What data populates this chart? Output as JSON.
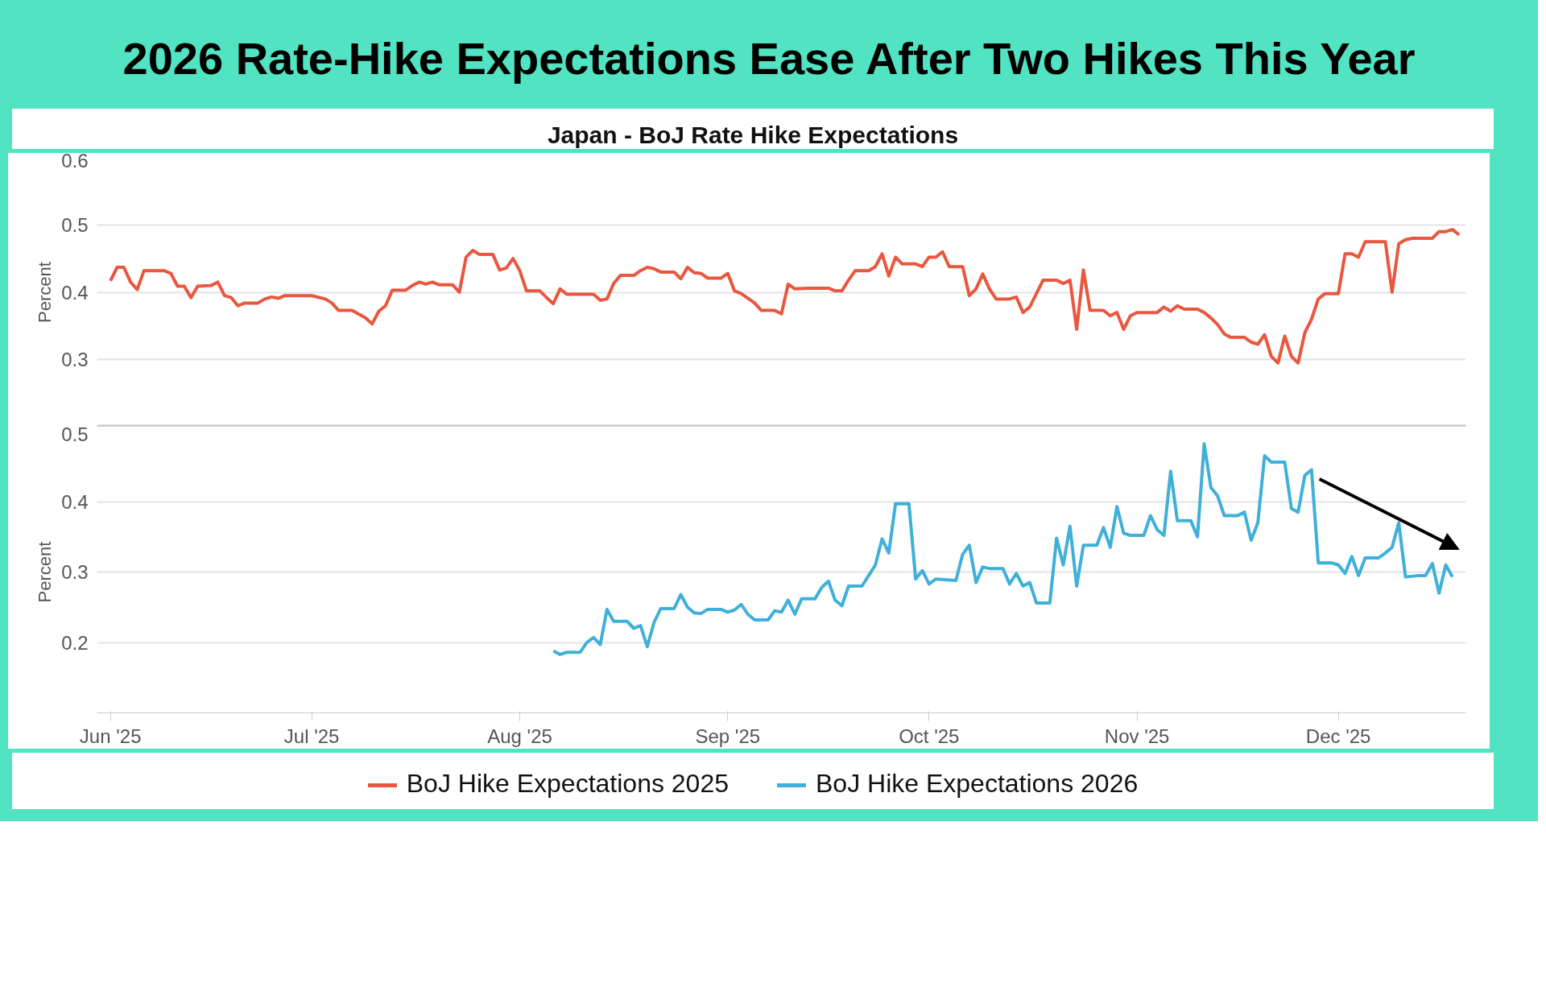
{
  "chart_data": [
    {
      "type": "line",
      "title": "2026 Rate-Hike Expectations Ease After Two Hikes This Year",
      "subtitle": "Japan - BoJ Rate Hike Expectations",
      "ylabel": "Percent",
      "xlim": [
        "2025-05-30",
        "2025-12-20"
      ],
      "ylim": [
        0.2,
        0.6
      ],
      "yticks": [
        0.3,
        0.4,
        0.5,
        0.6
      ],
      "tick_labels": "y",
      "grid": "y",
      "legend": "bottom",
      "series": [
        {
          "name": "BoJ Hike Expectations 2025",
          "color": "#e9573f",
          "x": [
            "2025-06-01",
            "2025-06-02",
            "2025-06-03",
            "2025-06-04",
            "2025-06-05",
            "2025-06-06",
            "2025-06-09",
            "2025-06-10",
            "2025-06-11",
            "2025-06-12",
            "2025-06-13",
            "2025-06-14",
            "2025-06-16",
            "2025-06-17",
            "2025-06-18",
            "2025-06-19",
            "2025-06-20",
            "2025-06-21",
            "2025-06-23",
            "2025-06-24",
            "2025-06-25",
            "2025-06-26",
            "2025-06-27",
            "2025-07-01",
            "2025-07-03",
            "2025-07-04",
            "2025-07-05",
            "2025-07-07",
            "2025-07-09",
            "2025-07-10",
            "2025-07-11",
            "2025-07-12",
            "2025-07-13",
            "2025-07-15",
            "2025-07-16",
            "2025-07-17",
            "2025-07-18",
            "2025-07-19",
            "2025-07-20",
            "2025-07-22",
            "2025-07-23",
            "2025-07-24",
            "2025-07-25",
            "2025-07-26",
            "2025-07-28",
            "2025-07-29",
            "2025-07-30",
            "2025-07-31",
            "2025-08-01",
            "2025-08-02",
            "2025-08-04",
            "2025-08-05",
            "2025-08-06",
            "2025-08-07",
            "2025-08-08",
            "2025-08-12",
            "2025-08-13",
            "2025-08-14",
            "2025-08-15",
            "2025-08-16",
            "2025-08-18",
            "2025-08-19",
            "2025-08-20",
            "2025-08-21",
            "2025-08-22",
            "2025-08-24",
            "2025-08-25",
            "2025-08-26",
            "2025-08-27",
            "2025-08-28",
            "2025-08-29",
            "2025-08-31",
            "2025-09-01",
            "2025-09-02",
            "2025-09-03",
            "2025-09-05",
            "2025-09-06",
            "2025-09-08",
            "2025-09-09",
            "2025-09-10",
            "2025-09-11",
            "2025-09-13",
            "2025-09-16",
            "2025-09-17",
            "2025-09-18",
            "2025-09-19",
            "2025-09-20",
            "2025-09-22",
            "2025-09-23",
            "2025-09-24",
            "2025-09-25",
            "2025-09-26",
            "2025-09-27",
            "2025-09-29",
            "2025-09-30",
            "2025-10-01",
            "2025-10-02",
            "2025-10-03",
            "2025-10-04",
            "2025-10-06",
            "2025-10-07",
            "2025-10-08",
            "2025-10-09",
            "2025-10-10",
            "2025-10-11",
            "2025-10-13",
            "2025-10-14",
            "2025-10-15",
            "2025-10-16",
            "2025-10-18",
            "2025-10-20",
            "2025-10-21",
            "2025-10-22",
            "2025-10-23",
            "2025-10-24",
            "2025-10-25",
            "2025-10-27",
            "2025-10-28",
            "2025-10-29",
            "2025-10-30",
            "2025-10-31",
            "2025-11-01",
            "2025-11-04",
            "2025-11-05",
            "2025-11-06",
            "2025-11-07",
            "2025-11-08",
            "2025-11-10",
            "2025-11-11",
            "2025-11-12",
            "2025-11-13",
            "2025-11-14",
            "2025-11-15",
            "2025-11-17",
            "2025-11-18",
            "2025-11-19",
            "2025-11-20",
            "2025-11-21",
            "2025-11-22",
            "2025-11-23",
            "2025-11-24",
            "2025-11-25",
            "2025-11-26",
            "2025-11-27",
            "2025-11-28",
            "2025-11-29",
            "2025-12-01",
            "2025-12-02",
            "2025-12-03",
            "2025-12-04",
            "2025-12-05",
            "2025-12-08",
            "2025-12-09",
            "2025-12-10",
            "2025-12-11",
            "2025-12-12",
            "2025-12-15",
            "2025-12-16",
            "2025-12-17",
            "2025-12-18",
            "2025-12-19"
          ],
          "values": [
            0.417,
            0.437,
            0.437,
            0.415,
            0.404,
            0.432,
            0.432,
            0.428,
            0.409,
            0.409,
            0.392,
            0.409,
            0.41,
            0.415,
            0.395,
            0.392,
            0.38,
            0.384,
            0.384,
            0.39,
            0.393,
            0.391,
            0.395,
            0.395,
            0.39,
            0.384,
            0.373,
            0.373,
            0.362,
            0.353,
            0.372,
            0.38,
            0.403,
            0.403,
            0.41,
            0.415,
            0.412,
            0.415,
            0.411,
            0.411,
            0.4,
            0.452,
            0.462,
            0.456,
            0.456,
            0.433,
            0.436,
            0.45,
            0.432,
            0.402,
            0.402,
            0.392,
            0.383,
            0.405,
            0.397,
            0.397,
            0.388,
            0.39,
            0.413,
            0.425,
            0.425,
            0.432,
            0.437,
            0.435,
            0.43,
            0.43,
            0.42,
            0.437,
            0.429,
            0.428,
            0.421,
            0.421,
            0.428,
            0.402,
            0.398,
            0.384,
            0.373,
            0.373,
            0.368,
            0.412,
            0.405,
            0.406,
            0.406,
            0.402,
            0.402,
            0.418,
            0.432,
            0.432,
            0.438,
            0.457,
            0.424,
            0.452,
            0.442,
            0.442,
            0.438,
            0.452,
            0.452,
            0.46,
            0.438,
            0.438,
            0.395,
            0.405,
            0.427,
            0.405,
            0.39,
            0.39,
            0.393,
            0.37,
            0.378,
            0.418,
            0.418,
            0.413,
            0.418,
            0.345,
            0.433,
            0.373,
            0.373,
            0.365,
            0.37,
            0.345,
            0.365,
            0.37,
            0.37,
            0.378,
            0.372,
            0.38,
            0.375,
            0.375,
            0.37,
            0.362,
            0.352,
            0.338,
            0.333,
            0.333,
            0.326,
            0.323,
            0.337,
            0.305,
            0.295,
            0.335,
            0.305,
            0.295,
            0.34,
            0.36,
            0.39,
            0.398,
            0.398,
            0.457,
            0.457,
            0.452,
            0.475,
            0.475,
            0.4,
            0.472,
            0.478,
            0.48,
            0.48,
            0.49,
            0.49,
            0.493,
            0.485
          ]
        }
      ]
    },
    {
      "type": "line",
      "ylabel": "Percent",
      "xlim": [
        "2025-05-30",
        "2025-12-20"
      ],
      "xticks": [
        {
          "value": "2025-06-01",
          "label": "Jun '25"
        },
        {
          "value": "2025-07-01",
          "label": "Jul '25"
        },
        {
          "value": "2025-08-01",
          "label": "Aug '25"
        },
        {
          "value": "2025-09-01",
          "label": "Sep '25"
        },
        {
          "value": "2025-10-01",
          "label": "Oct '25"
        },
        {
          "value": "2025-11-01",
          "label": "Nov '25"
        },
        {
          "value": "2025-12-01",
          "label": "Dec '25"
        }
      ],
      "ylim": [
        0.1,
        0.5
      ],
      "yticks": [
        0.2,
        0.3,
        0.4,
        0.5
      ],
      "grid": "y",
      "legend": "bottom",
      "series": [
        {
          "name": "BoJ Hike Expectations 2026",
          "color": "#3fb0d9",
          "x": [
            "2025-08-06",
            "2025-08-07",
            "2025-08-08",
            "2025-08-10",
            "2025-08-11",
            "2025-08-12",
            "2025-08-13",
            "2025-08-14",
            "2025-08-15",
            "2025-08-17",
            "2025-08-18",
            "2025-08-19",
            "2025-08-20",
            "2025-08-21",
            "2025-08-22",
            "2025-08-24",
            "2025-08-25",
            "2025-08-26",
            "2025-08-27",
            "2025-08-28",
            "2025-08-29",
            "2025-08-31",
            "2025-09-01",
            "2025-09-02",
            "2025-09-03",
            "2025-09-04",
            "2025-09-05",
            "2025-09-07",
            "2025-09-08",
            "2025-09-09",
            "2025-09-10",
            "2025-09-11",
            "2025-09-12",
            "2025-09-14",
            "2025-09-15",
            "2025-09-16",
            "2025-09-17",
            "2025-09-18",
            "2025-09-19",
            "2025-09-21",
            "2025-09-22",
            "2025-09-23",
            "2025-09-24",
            "2025-09-25",
            "2025-09-26",
            "2025-09-28",
            "2025-09-29",
            "2025-09-30",
            "2025-10-01",
            "2025-10-02",
            "2025-10-05",
            "2025-10-06",
            "2025-10-07",
            "2025-10-08",
            "2025-10-09",
            "2025-10-10",
            "2025-10-12",
            "2025-10-13",
            "2025-10-14",
            "2025-10-15",
            "2025-10-16",
            "2025-10-17",
            "2025-10-19",
            "2025-10-20",
            "2025-10-21",
            "2025-10-22",
            "2025-10-23",
            "2025-10-24",
            "2025-10-26",
            "2025-10-27",
            "2025-10-28",
            "2025-10-29",
            "2025-10-30",
            "2025-10-31",
            "2025-11-02",
            "2025-11-03",
            "2025-11-04",
            "2025-11-05",
            "2025-11-06",
            "2025-11-07",
            "2025-11-09",
            "2025-11-10",
            "2025-11-11",
            "2025-11-12",
            "2025-11-13",
            "2025-11-14",
            "2025-11-16",
            "2025-11-17",
            "2025-11-18",
            "2025-11-19",
            "2025-11-20",
            "2025-11-21",
            "2025-11-23",
            "2025-11-24",
            "2025-11-25",
            "2025-11-26",
            "2025-11-27",
            "2025-11-28",
            "2025-11-30",
            "2025-12-01",
            "2025-12-02",
            "2025-12-03",
            "2025-12-04",
            "2025-12-05",
            "2025-12-07",
            "2025-12-08",
            "2025-12-09",
            "2025-12-10",
            "2025-12-11",
            "2025-12-13",
            "2025-12-14",
            "2025-12-15",
            "2025-12-16",
            "2025-12-17",
            "2025-12-18"
          ],
          "values": [
            0.188,
            0.183,
            0.186,
            0.186,
            0.2,
            0.207,
            0.197,
            0.247,
            0.23,
            0.23,
            0.22,
            0.224,
            0.194,
            0.228,
            0.248,
            0.248,
            0.268,
            0.25,
            0.242,
            0.241,
            0.247,
            0.247,
            0.243,
            0.246,
            0.254,
            0.24,
            0.232,
            0.232,
            0.245,
            0.243,
            0.26,
            0.24,
            0.262,
            0.262,
            0.278,
            0.287,
            0.26,
            0.252,
            0.28,
            0.28,
            0.295,
            0.31,
            0.347,
            0.327,
            0.397,
            0.397,
            0.29,
            0.302,
            0.283,
            0.29,
            0.288,
            0.325,
            0.338,
            0.285,
            0.307,
            0.305,
            0.305,
            0.283,
            0.298,
            0.28,
            0.285,
            0.256,
            0.256,
            0.348,
            0.31,
            0.365,
            0.28,
            0.338,
            0.338,
            0.363,
            0.335,
            0.393,
            0.355,
            0.352,
            0.352,
            0.38,
            0.36,
            0.352,
            0.443,
            0.373,
            0.373,
            0.35,
            0.482,
            0.42,
            0.408,
            0.38,
            0.38,
            0.385,
            0.345,
            0.37,
            0.465,
            0.456,
            0.456,
            0.39,
            0.385,
            0.437,
            0.445,
            0.313,
            0.313,
            0.31,
            0.298,
            0.322,
            0.295,
            0.32,
            0.32,
            0.327,
            0.335,
            0.37,
            0.293,
            0.295,
            0.295,
            0.312,
            0.27,
            0.31,
            0.293
          ]
        }
      ]
    }
  ]
}
